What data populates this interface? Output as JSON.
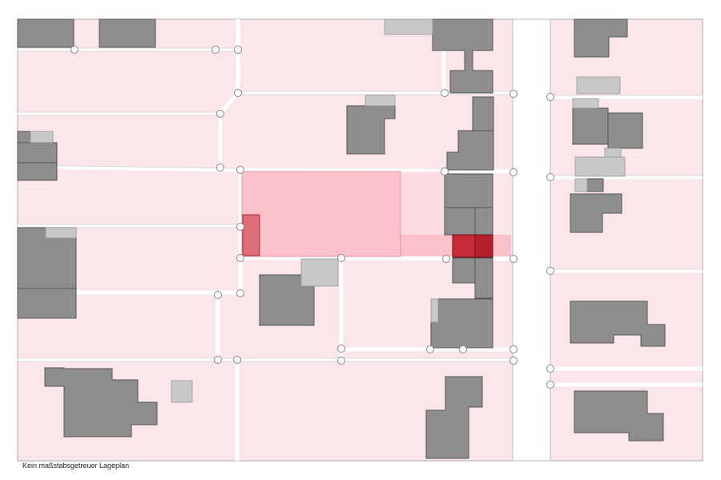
{
  "caption": "Kein maßstabsgetreuer Lageplan",
  "colors": {
    "parcel_fill": "#fbe6ec",
    "parcel_line": "#ffffff",
    "building": "#8e8e8e",
    "building_stroke": "#555555",
    "outbuilding": "#c8c8c8",
    "highlight_plot": "#ff7f93",
    "highlight_house": "#c62a36",
    "road": "#ffffff",
    "frame": "#aaaaaa"
  },
  "legend_icons": {
    "boundary_point": "circle-marker-icon"
  }
}
